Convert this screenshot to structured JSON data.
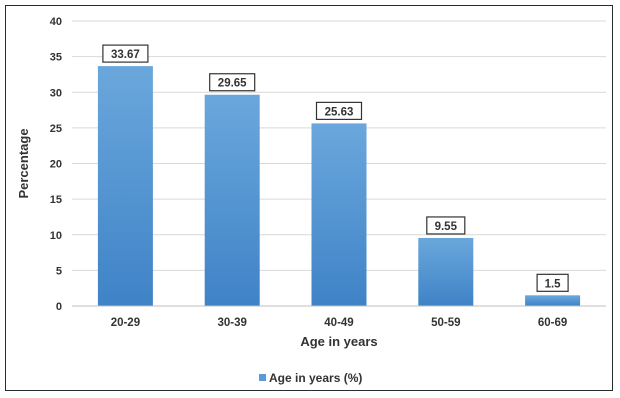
{
  "chart_data": {
    "type": "bar",
    "title": "",
    "xlabel": "Age in years",
    "ylabel": "Percentage",
    "ylim": [
      0,
      40
    ],
    "yticks": [
      0,
      5,
      10,
      15,
      20,
      25,
      30,
      35,
      40
    ],
    "grid": true,
    "legend_position": "bottom",
    "categories": [
      "20-29",
      "30-39",
      "40-49",
      "50-59",
      "60-69"
    ],
    "series": [
      {
        "name": "Age in years (%)",
        "values": [
          33.67,
          29.65,
          25.63,
          9.55,
          1.5
        ],
        "data_labels": [
          "33.67",
          "29.65",
          "25.63",
          "9.55",
          "1.5"
        ],
        "color": "#5b9bd5"
      }
    ]
  }
}
